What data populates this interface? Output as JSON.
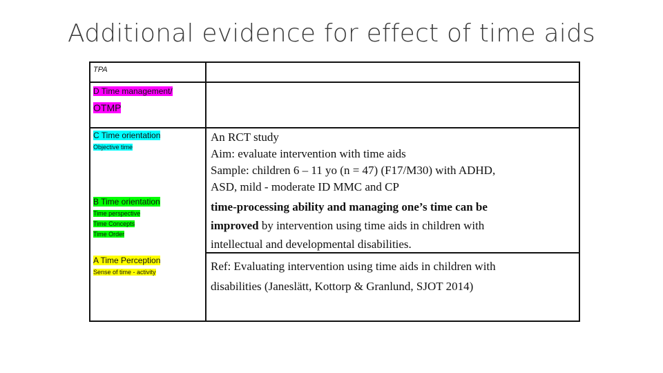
{
  "title": "Additional evidence for effect of time aids",
  "left_column": {
    "tpa": "TPA",
    "d_level": "D Time management/",
    "d_sub": "OTMP",
    "c_level": "C Time orientation",
    "c_sub": "Objective time",
    "b_level": "B Time orientation",
    "b_subs": [
      "Time perspective",
      "Time Concepts",
      "Time Order"
    ],
    "a_level": "A Time Perception",
    "a_sub": "Sense of time - activity"
  },
  "right_column": {
    "study_lines": [
      "An RCT study",
      "Aim: evaluate intervention with time aids",
      "Sample: children 6 – 11 yo (n = 47) (F17/M30) with ADHD,",
      "ASD, mild - moderate ID MMC and CP"
    ],
    "finding_bold_1": "time-processing ability and managing one’s time can be",
    "finding_bold_2": "improved",
    "finding_rest_2": " by intervention using time aids in children with",
    "finding_line_3": "intellectual and developmental disabilities.",
    "ref_lines": [
      "Ref: Evaluating intervention using time aids in children with",
      "disabilities (Janeslätt, Kottorp & Granlund, SJOT 2014)"
    ]
  },
  "highlight_colors": {
    "d": "#ff00ff",
    "c": "#00ffff",
    "b": "#00ff00",
    "a": "#ffff00"
  }
}
